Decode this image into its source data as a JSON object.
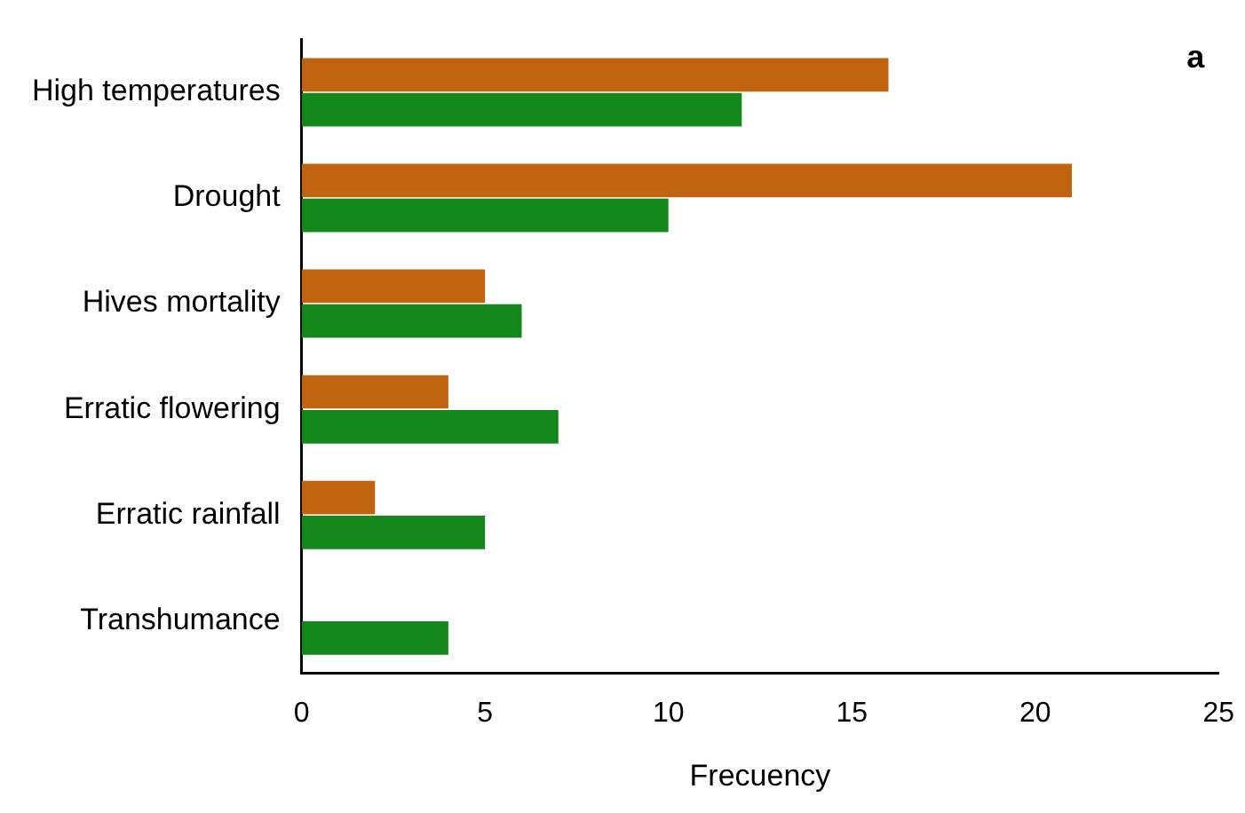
{
  "chart_data": {
    "type": "bar",
    "orientation": "horizontal",
    "xlabel": "Frecuency",
    "annotations": [
      "a"
    ],
    "categories": [
      "High temperatures",
      "Drought",
      "Hives mortality",
      "Erratic flowering",
      "Erratic rainfall",
      "Transhumance"
    ],
    "series": [
      {
        "color": "#c0640f",
        "values": [
          16,
          21,
          5,
          4,
          2,
          null
        ]
      },
      {
        "color": "#14871a",
        "values": [
          12,
          10,
          6,
          7,
          5,
          4
        ]
      }
    ],
    "xlim": [
      0,
      25
    ],
    "xticks": [
      0,
      5,
      10,
      15,
      20,
      25
    ],
    "grid": false,
    "legend": false
  }
}
